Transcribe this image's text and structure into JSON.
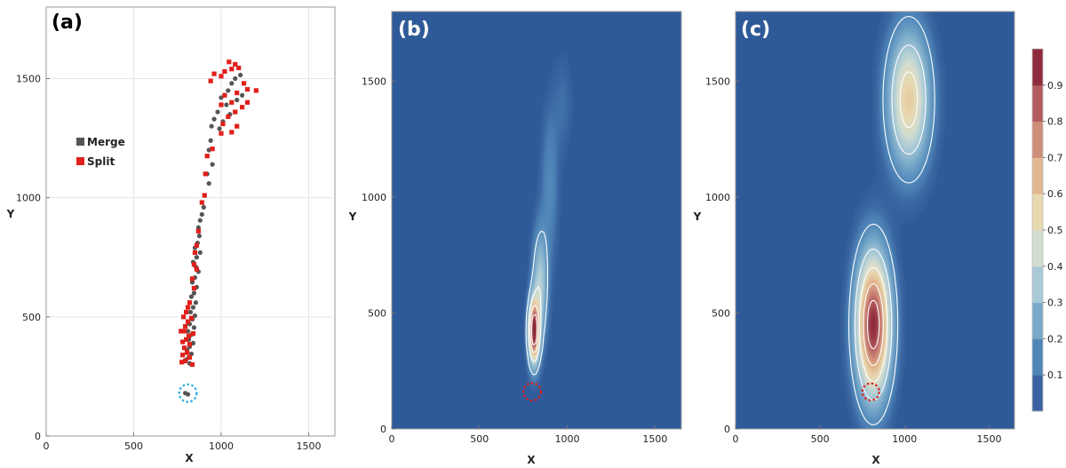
{
  "colors": {
    "merge": "#555555",
    "split": "#e0201b",
    "marker_a": "#29a8e0",
    "marker_bc": "#e0201b",
    "background_field": "#2f5a99",
    "contour_line": "#ffffff"
  },
  "chart_data": [
    {
      "panel": "(a)",
      "type": "scatter",
      "xlabel": "X",
      "ylabel": "Y",
      "xlim": [
        0,
        1650
      ],
      "ylim": [
        0,
        1800
      ],
      "xticks": [
        "0",
        "500",
        "1000",
        "1500"
      ],
      "yticks": [
        "0",
        "500",
        "1000",
        "1500"
      ],
      "grid": true,
      "legend_position": "left-middle",
      "series": [
        {
          "name": "Merge",
          "marker": "circle",
          "color": "#555555",
          "points": [
            [
              1080,
              1500
            ],
            [
              1110,
              1515
            ],
            [
              1060,
              1480
            ],
            [
              1040,
              1450
            ],
            [
              1000,
              1420
            ],
            [
              1030,
              1390
            ],
            [
              1090,
              1410
            ],
            [
              1120,
              1430
            ],
            [
              980,
              1360
            ],
            [
              960,
              1330
            ],
            [
              945,
              1300
            ],
            [
              990,
              1290
            ],
            [
              1010,
              1320
            ],
            [
              1050,
              1350
            ],
            [
              940,
              1240
            ],
            [
              930,
              1200
            ],
            [
              950,
              1140
            ],
            [
              920,
              1100
            ],
            [
              930,
              1060
            ],
            [
              905,
              1010
            ],
            [
              900,
              960
            ],
            [
              890,
              930
            ],
            [
              880,
              905
            ],
            [
              870,
              875
            ],
            [
              875,
              840
            ],
            [
              865,
              810
            ],
            [
              850,
              790
            ],
            [
              880,
              770
            ],
            [
              860,
              750
            ],
            [
              840,
              730
            ],
            [
              855,
              710
            ],
            [
              870,
              690
            ],
            [
              850,
              665
            ],
            [
              835,
              645
            ],
            [
              860,
              625
            ],
            [
              845,
              600
            ],
            [
              830,
              585
            ],
            [
              855,
              560
            ],
            [
              840,
              540
            ],
            [
              825,
              520
            ],
            [
              850,
              505
            ],
            [
              835,
              490
            ],
            [
              820,
              470
            ],
            [
              845,
              455
            ],
            [
              810,
              440
            ],
            [
              830,
              425
            ],
            [
              815,
              405
            ],
            [
              840,
              390
            ],
            [
              820,
              375
            ],
            [
              805,
              360
            ],
            [
              830,
              345
            ],
            [
              815,
              330
            ],
            [
              800,
              320
            ],
            [
              820,
              305
            ],
            [
              795,
              180
            ],
            [
              810,
              175
            ]
          ]
        },
        {
          "name": "Split",
          "marker": "square",
          "color": "#e0201b",
          "points": [
            [
              1045,
              1570
            ],
            [
              1080,
              1560
            ],
            [
              1100,
              1545
            ],
            [
              1020,
              1530
            ],
            [
              1060,
              1540
            ],
            [
              960,
              1520
            ],
            [
              1000,
              1510
            ],
            [
              940,
              1490
            ],
            [
              1130,
              1480
            ],
            [
              1200,
              1450
            ],
            [
              1150,
              1455
            ],
            [
              1090,
              1440
            ],
            [
              1020,
              1430
            ],
            [
              1060,
              1400
            ],
            [
              1000,
              1390
            ],
            [
              1120,
              1380
            ],
            [
              1150,
              1400
            ],
            [
              1080,
              1360
            ],
            [
              1040,
              1340
            ],
            [
              1010,
              1310
            ],
            [
              1090,
              1300
            ],
            [
              1060,
              1275
            ],
            [
              1000,
              1270
            ],
            [
              950,
              1205
            ],
            [
              920,
              1175
            ],
            [
              910,
              1100
            ],
            [
              905,
              1010
            ],
            [
              890,
              980
            ],
            [
              870,
              860
            ],
            [
              860,
              800
            ],
            [
              850,
              770
            ],
            [
              845,
              720
            ],
            [
              860,
              700
            ],
            [
              835,
              660
            ],
            [
              845,
              620
            ],
            [
              820,
              560
            ],
            [
              810,
              540
            ],
            [
              800,
              520
            ],
            [
              785,
              500
            ],
            [
              830,
              495
            ],
            [
              810,
              480
            ],
            [
              795,
              460
            ],
            [
              790,
              440
            ],
            [
              770,
              440
            ],
            [
              840,
              430
            ],
            [
              815,
              420
            ],
            [
              800,
              405
            ],
            [
              780,
              395
            ],
            [
              820,
              385
            ],
            [
              790,
              370
            ],
            [
              805,
              350
            ],
            [
              780,
              340
            ],
            [
              820,
              330
            ],
            [
              795,
              315
            ],
            [
              775,
              310
            ],
            [
              835,
              300
            ]
          ]
        }
      ],
      "marker_circle": {
        "x": 810,
        "y": 180,
        "r": 50,
        "style": "dotted",
        "color": "#29a8e0"
      }
    },
    {
      "panel": "(b)",
      "type": "heatmap",
      "xlabel": "X",
      "ylabel": "Y",
      "xlim": [
        0,
        1650
      ],
      "ylim": [
        0,
        1800
      ],
      "xticks": [
        "0",
        "500",
        "1000",
        "1500"
      ],
      "yticks": [
        "0",
        "500",
        "1000",
        "1500"
      ],
      "peaks": [
        {
          "x": 810,
          "y": 420,
          "sx": 22,
          "sy": 95,
          "amp": 1.0
        },
        {
          "x": 845,
          "y": 620,
          "sx": 30,
          "sy": 160,
          "amp": 0.35
        },
        {
          "x": 900,
          "y": 1050,
          "sx": 35,
          "sy": 230,
          "amp": 0.12
        },
        {
          "x": 975,
          "y": 1400,
          "sx": 40,
          "sy": 150,
          "amp": 0.06
        }
      ],
      "contour_levels": [
        0.15,
        0.4,
        0.65,
        0.85
      ],
      "marker_circle": {
        "x": 800,
        "y": 160,
        "r": 50,
        "style": "dotted",
        "color": "#e0201b"
      }
    },
    {
      "panel": "(c)",
      "type": "heatmap",
      "xlabel": "X",
      "ylabel": "Y",
      "xlim": [
        0,
        1650
      ],
      "ylim": [
        0,
        1800
      ],
      "xticks": [
        "0",
        "500",
        "1000",
        "1500"
      ],
      "yticks": [
        "0",
        "500",
        "1000",
        "1500"
      ],
      "peaks": [
        {
          "x": 815,
          "y": 450,
          "sx": 70,
          "sy": 210,
          "amp": 1.0
        },
        {
          "x": 1025,
          "y": 1420,
          "sx": 85,
          "sy": 200,
          "amp": 0.6
        }
      ],
      "contour_levels": [
        0.12,
        0.3,
        0.5,
        0.7,
        0.88
      ],
      "marker_circle": {
        "x": 800,
        "y": 160,
        "r": 50,
        "style": "dotted",
        "color": "#e0201b"
      }
    }
  ],
  "colorbar": {
    "ticks": [
      "0.1",
      "0.2",
      "0.3",
      "0.4",
      "0.5",
      "0.6",
      "0.7",
      "0.8",
      "0.9"
    ],
    "colors": [
      "#3a62a0",
      "#4f86b8",
      "#7aaaca",
      "#a8c9d6",
      "#d3ddd0",
      "#e8d8b0",
      "#e2b890",
      "#cf8e7a",
      "#b35c60",
      "#8e2a3c"
    ]
  },
  "legend": {
    "merge_label": "Merge",
    "split_label": "Split"
  }
}
